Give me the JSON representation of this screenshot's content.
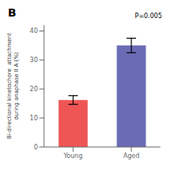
{
  "chart_data": {
    "type": "bar",
    "categories": [
      "Young",
      "Aged"
    ],
    "values": [
      16.2,
      35.0
    ],
    "errors": [
      1.5,
      2.5
    ],
    "colors": [
      "#f05555",
      "#6b6bb5"
    ],
    "y_label": "Bi-directional kinetochore  attachment\nduring anaphase II A (%)",
    "ylim": [
      0,
      42
    ],
    "yticks": [
      0,
      10,
      20,
      30,
      40
    ],
    "annotations": [
      "P=0.005"
    ],
    "panel_label": "B",
    "grid": false
  }
}
